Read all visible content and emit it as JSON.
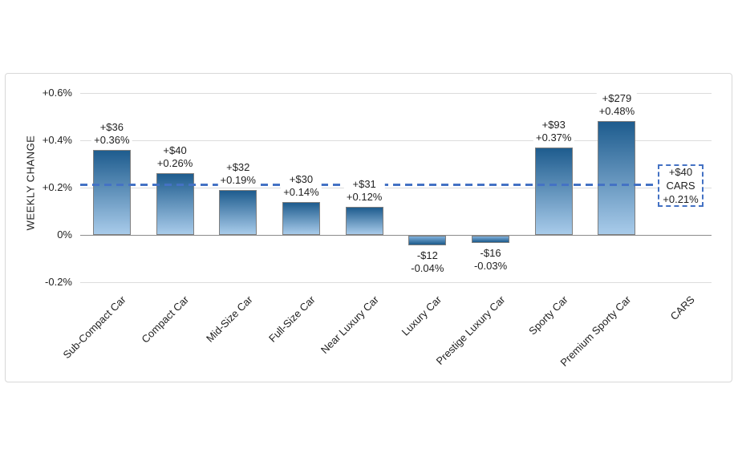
{
  "chart_data": {
    "type": "bar",
    "title": "",
    "xlabel": "",
    "ylabel": "WEEKLY CHANGE",
    "ylim": [
      -0.2,
      0.6
    ],
    "grid": true,
    "legend": null,
    "yticks": [
      {
        "value": 0.6,
        "label": "+0.6%"
      },
      {
        "value": 0.4,
        "label": "+0.4%"
      },
      {
        "value": 0.2,
        "label": "+0.2%"
      },
      {
        "value": 0.0,
        "label": "0%"
      },
      {
        "value": -0.2,
        "label": "-0.2%"
      }
    ],
    "categories": [
      "Sub-Compact Car",
      "Compact Car",
      "Mid-Size Car",
      "Full-Size Car",
      "Near Luxury Car",
      "Luxury Car",
      "Prestige Luxury Car",
      "Sporty Car",
      "Premium Sporty Car",
      "CARS"
    ],
    "bars": [
      {
        "category": "Sub-Compact Car",
        "dollar_label": "+$36",
        "pct_label": "+0.36%",
        "value_pct": 0.36
      },
      {
        "category": "Compact Car",
        "dollar_label": "+$40",
        "pct_label": "+0.26%",
        "value_pct": 0.26
      },
      {
        "category": "Mid-Size Car",
        "dollar_label": "+$32",
        "pct_label": "+0.19%",
        "value_pct": 0.19
      },
      {
        "category": "Full-Size Car",
        "dollar_label": "+$30",
        "pct_label": "+0.14%",
        "value_pct": 0.14
      },
      {
        "category": "Near Luxury Car",
        "dollar_label": "+$31",
        "pct_label": "+0.12%",
        "value_pct": 0.12
      },
      {
        "category": "Luxury Car",
        "dollar_label": "-$12",
        "pct_label": "-0.04%",
        "value_pct": -0.04
      },
      {
        "category": "Prestige Luxury Car",
        "dollar_label": "-$16",
        "pct_label": "-0.03%",
        "value_pct": -0.03
      },
      {
        "category": "Sporty Car",
        "dollar_label": "+$93",
        "pct_label": "+0.37%",
        "value_pct": 0.37
      },
      {
        "category": "Premium Sporty Car",
        "dollar_label": "+$279",
        "pct_label": "+0.48%",
        "value_pct": 0.48
      },
      {
        "category": "CARS",
        "dollar_label": null,
        "pct_label": null,
        "value_pct": null
      }
    ],
    "reference_line": {
      "value_pct": 0.21,
      "style": "dashed",
      "box_lines": [
        "+$40",
        "CARS",
        "+0.21%"
      ]
    },
    "colors": {
      "bar_gradient_top": "#1E5C8E",
      "bar_gradient_bottom": "#A8CBEA",
      "neg_gradient_top": "#7FB0DC",
      "neg_gradient_bottom": "#1C5A8A",
      "bar_border": "#7F7F7F",
      "gridline": "#DCDCDC",
      "zero_line": "#8C8C8C",
      "reference": "#4472C4",
      "frame_border": "#D8D8D8",
      "text": "#1F1F1F"
    }
  }
}
